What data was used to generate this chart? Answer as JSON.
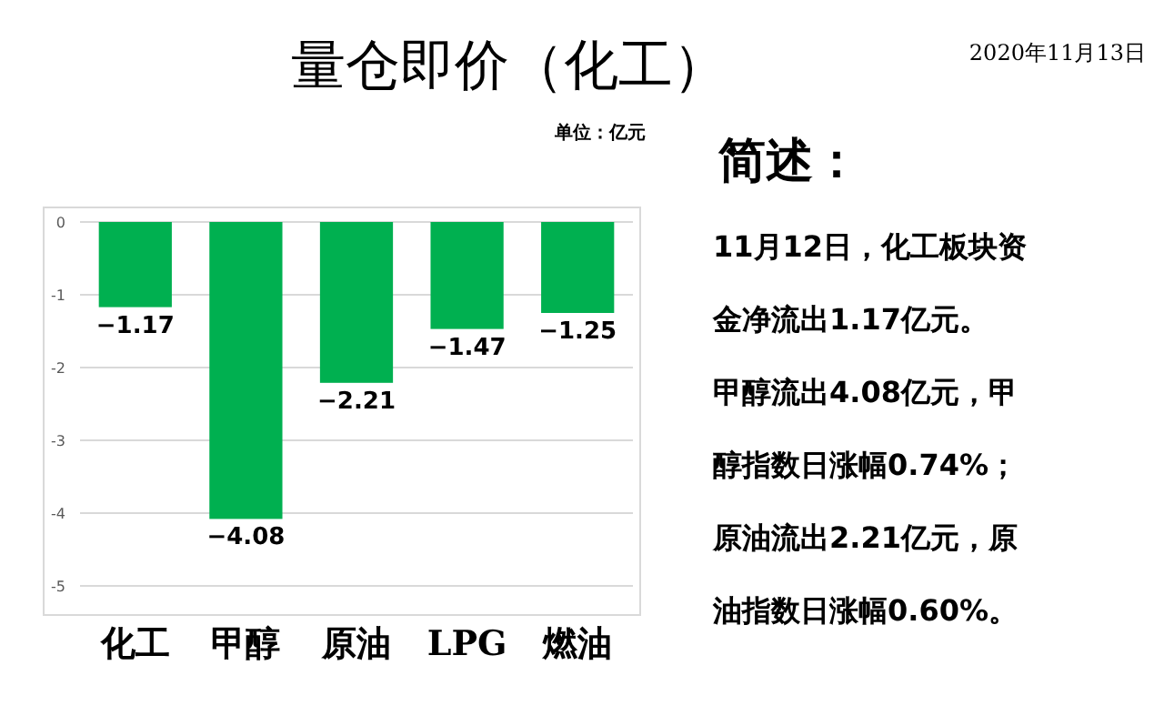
{
  "chart_data": {
    "type": "bar",
    "title": "量仓即价（化工）",
    "categories": [
      "化工",
      "甲醇",
      "原油",
      "LPG",
      "燃油"
    ],
    "values": [
      -1.17,
      -4.08,
      -2.21,
      -1.47,
      -1.25
    ],
    "color": "#00b050",
    "ylim": [
      -5.4,
      0
    ],
    "yticks": [
      0,
      -1,
      -2,
      -3,
      -4,
      -5
    ],
    "grid": "y",
    "data_labels": true,
    "annotations": [
      "2020年11月13日",
      "单位：亿元",
      "简述：",
      "11月12日，化工板块资",
      "金净流出1.17亿元。",
      "甲醇流出4.08亿元，甲",
      "醇指数日涨幅0.74%；",
      "原油流出2.21亿元，原",
      "油指数日涨幅0.60%。"
    ]
  }
}
